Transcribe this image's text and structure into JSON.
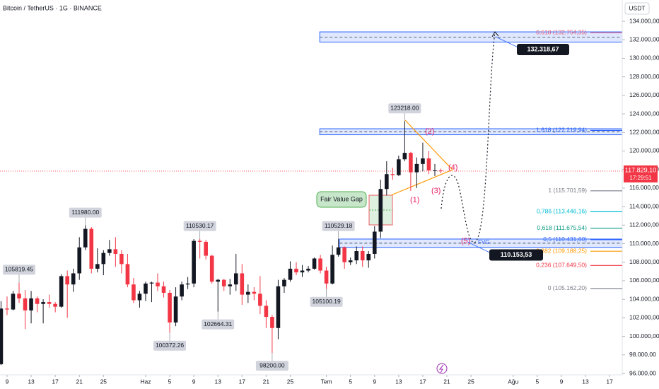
{
  "chart_data": {
    "type": "candlestick",
    "title": "Bitcoin / TetherUS · 1G · BINANCE",
    "currency": "USDT",
    "up_color": "#131722",
    "down_color": "#f23645",
    "grid": false,
    "xlim": [
      7.83,
      111.1
    ],
    "xticks": [
      {
        "value": 9,
        "label": "9"
      },
      {
        "value": 13,
        "label": "13"
      },
      {
        "value": 17,
        "label": "17"
      },
      {
        "value": 21,
        "label": "21"
      },
      {
        "value": 25,
        "label": "25"
      },
      {
        "value": 32,
        "label": "Haz"
      },
      {
        "value": 36,
        "label": "5"
      },
      {
        "value": 40,
        "label": "9"
      },
      {
        "value": 44,
        "label": "13"
      },
      {
        "value": 48,
        "label": "17"
      },
      {
        "value": 52,
        "label": "21"
      },
      {
        "value": 56,
        "label": "25"
      },
      {
        "value": 62,
        "label": "Tem"
      },
      {
        "value": 66,
        "label": "5"
      },
      {
        "value": 70,
        "label": "9"
      },
      {
        "value": 74,
        "label": "13"
      },
      {
        "value": 78,
        "label": "17"
      },
      {
        "value": 82,
        "label": "21"
      },
      {
        "value": 86,
        "label": "25"
      },
      {
        "value": 93,
        "label": "Ağu"
      },
      {
        "value": 97,
        "label": "5"
      },
      {
        "value": 101,
        "label": "9"
      },
      {
        "value": 105,
        "label": "13"
      },
      {
        "value": 109,
        "label": "17"
      }
    ],
    "ylim": [
      96000,
      136290
    ],
    "yticks": [
      {
        "value": 96000,
        "label": "96.000,00"
      },
      {
        "value": 98000,
        "label": "98.000,00"
      },
      {
        "value": 100000,
        "label": "100.000,00"
      },
      {
        "value": 102000,
        "label": "102.000,00"
      },
      {
        "value": 104000,
        "label": "104.000,00"
      },
      {
        "value": 106000,
        "label": "106.000,00"
      },
      {
        "value": 108000,
        "label": "108.000,00"
      },
      {
        "value": 110000,
        "label": "110.000,00"
      },
      {
        "value": 112000,
        "label": "112.000,00"
      },
      {
        "value": 114000,
        "label": "114.000,00"
      },
      {
        "value": 116000,
        "label": "116.000,00"
      },
      {
        "value": 118000,
        "label": "118.000,00"
      },
      {
        "value": 120000,
        "label": "120.000,00"
      },
      {
        "value": 122000,
        "label": "122.000,00"
      },
      {
        "value": 124000,
        "label": "124.000,00"
      },
      {
        "value": 126000,
        "label": "126.000,00"
      },
      {
        "value": 128000,
        "label": "128.000,00"
      },
      {
        "value": 130000,
        "label": "130.000,00"
      },
      {
        "value": 132000,
        "label": "132.000,00"
      },
      {
        "value": 134000,
        "label": "134.000,00"
      }
    ],
    "x": [
      8,
      9,
      10,
      11,
      12,
      13,
      14,
      15,
      16,
      17,
      18,
      19,
      20,
      21,
      22,
      23,
      24,
      25,
      26,
      27,
      28,
      29,
      30,
      31,
      32,
      33,
      34,
      35,
      36,
      37,
      38,
      39,
      40,
      41,
      42,
      43,
      44,
      45,
      46,
      47,
      48,
      49,
      50,
      51,
      52,
      53,
      54,
      55,
      56,
      57,
      58,
      59,
      60,
      61,
      62,
      63,
      64,
      65,
      66,
      67,
      68,
      69,
      70,
      71,
      72,
      73,
      74,
      75,
      76,
      77,
      78,
      79,
      80,
      81
    ],
    "open": [
      97000,
      103000,
      102900,
      104600,
      104100,
      102800,
      104100,
      103500,
      103700,
      103500,
      103200,
      106500,
      105600,
      106800,
      109600,
      111600,
      107300,
      107800,
      109000,
      109400,
      108900,
      107800,
      105600,
      103900,
      104600,
      105700,
      105800,
      105400,
      104700,
      101500,
      104300,
      105600,
      105700,
      110300,
      110200,
      108700,
      105900,
      106100,
      105400,
      105600,
      106800,
      104500,
      104800,
      104600,
      103300,
      102100,
      100900,
      105400,
      106100,
      107300,
      106900,
      107100,
      107300,
      108400,
      107100,
      105700,
      108800,
      109600,
      108000,
      108200,
      109200,
      108200,
      108900,
      111300,
      115900,
      117500,
      117400,
      119100,
      119800,
      117700,
      118600,
      119200,
      117900,
      117900
    ],
    "high": [
      103800,
      104300,
      104900,
      105819.45,
      105000,
      104900,
      104300,
      104000,
      104500,
      103700,
      106700,
      107100,
      107300,
      110700,
      111980,
      111800,
      109500,
      109300,
      110400,
      110700,
      109300,
      108900,
      106300,
      104900,
      105900,
      105900,
      106800,
      105900,
      105000,
      105300,
      105900,
      106400,
      110500,
      110530.17,
      110400,
      108800,
      106200,
      106200,
      106200,
      108900,
      107800,
      105600,
      105300,
      106500,
      103900,
      102300,
      106100,
      106300,
      108100,
      108000,
      107700,
      107600,
      108500,
      108800,
      107500,
      109800,
      110529.18,
      109700,
      108500,
      109700,
      109700,
      109200,
      111900,
      116900,
      118900,
      118200,
      119500,
      123218,
      119900,
      119300,
      120900,
      120000,
      118600,
      118100
    ],
    "low": [
      96900,
      102300,
      102800,
      103600,
      100800,
      101400,
      102600,
      101400,
      103100,
      102600,
      103100,
      102000,
      104800,
      106100,
      109300,
      106800,
      106900,
      106600,
      108700,
      107500,
      106800,
      105300,
      103600,
      103100,
      103800,
      103700,
      104900,
      104200,
      100372.26,
      101100,
      103900,
      105100,
      105300,
      108400,
      108300,
      105700,
      102664.31,
      104900,
      104500,
      104900,
      103400,
      103600,
      103900,
      102400,
      100900,
      98200,
      99700,
      104700,
      105900,
      106600,
      106400,
      106900,
      107200,
      106800,
      105100.19,
      105600,
      108600,
      107300,
      107700,
      107800,
      107500,
      107400,
      108400,
      110600,
      115200,
      116900,
      117300,
      118900,
      115700,
      116000,
      117800,
      117500,
      117300,
      117600
    ],
    "close": [
      103000,
      102900,
      104600,
      104100,
      102800,
      104100,
      103500,
      103700,
      103500,
      103200,
      106500,
      105600,
      106800,
      109600,
      111600,
      107300,
      107800,
      109000,
      109400,
      108900,
      107800,
      105600,
      103900,
      104600,
      105700,
      105800,
      105400,
      104700,
      101500,
      104300,
      105600,
      105700,
      110300,
      110200,
      108700,
      105900,
      106100,
      105400,
      105600,
      106800,
      104500,
      104800,
      104600,
      103300,
      102100,
      100900,
      105400,
      106100,
      107300,
      106900,
      107100,
      107300,
      108400,
      107100,
      105700,
      108800,
      109600,
      108000,
      108200,
      109200,
      108200,
      108900,
      111300,
      115900,
      117500,
      117400,
      119100,
      119800,
      117700,
      118600,
      119200,
      117900,
      117900,
      117829.1
    ],
    "price_labels": [
      {
        "x": 11,
        "value": 105819.45,
        "label": "105819.45",
        "pos": "above"
      },
      {
        "x": 22,
        "value": 111980,
        "label": "111980.00",
        "pos": "above"
      },
      {
        "x": 36,
        "value": 100372.26,
        "label": "100372.26",
        "pos": "below"
      },
      {
        "x": 41,
        "value": 110530.17,
        "label": "110530.17",
        "pos": "above"
      },
      {
        "x": 44,
        "value": 102664.31,
        "label": "102664.31",
        "pos": "below"
      },
      {
        "x": 53,
        "value": 98200,
        "label": "98200.00",
        "pos": "below"
      },
      {
        "x": 62,
        "value": 105100.19,
        "label": "105100.19",
        "pos": "below"
      },
      {
        "x": 64,
        "value": 110529.18,
        "label": "110529.18",
        "pos": "above"
      },
      {
        "x": 75,
        "value": 123218,
        "label": "123218.00",
        "pos": "above"
      }
    ],
    "zones": [
      {
        "start": 60.9,
        "from": 131750,
        "to": 132850
      },
      {
        "start": 60.9,
        "from": 121750,
        "to": 122400
      },
      {
        "start": 64.2,
        "from": 109600,
        "to": 110500
      }
    ],
    "fib_levels": [
      {
        "label": "0,618 (132.754,35)",
        "value": 132754.35,
        "color": "#e0607e"
      },
      {
        "label": "1,618 (122.219,94)",
        "value": 122219.94,
        "color": "#2962ff"
      },
      {
        "label": "1 (115.701,59)",
        "value": 115701.59,
        "color": "#787b86"
      },
      {
        "label": "0,786 (113.446,16)",
        "value": 113446.16,
        "color": "#00bcd4"
      },
      {
        "label": "0,618 (111.675,54)",
        "value": 111675.54,
        "color": "#089981"
      },
      {
        "label": "0,5 (110.431,60)",
        "value": 110431.6,
        "color": "#2962ff"
      },
      {
        "label": "0,382 (109.188,25)",
        "value": 109188.25,
        "color": "#ff9800"
      },
      {
        "label": "0,236 (107.649,50)",
        "value": 107649.5,
        "color": "#f23645"
      },
      {
        "label": "0 (105.162,20)",
        "value": 105162.2,
        "color": "#787b86"
      }
    ],
    "targets": [
      {
        "label": "132.318,67",
        "value": 132318.67
      },
      {
        "label": "110.153,53",
        "value": 110153.53
      }
    ],
    "last_price": {
      "label": "117.829,10",
      "value": 117829.1,
      "countdown": "17:29:51"
    },
    "annotations": {
      "fvg_box": "Fair Value Gap",
      "fvg": "FVG",
      "w1": "(1)",
      "w2": "(2)",
      "w3": "(3)",
      "w4": "(4)",
      "w5": "(5)"
    }
  }
}
